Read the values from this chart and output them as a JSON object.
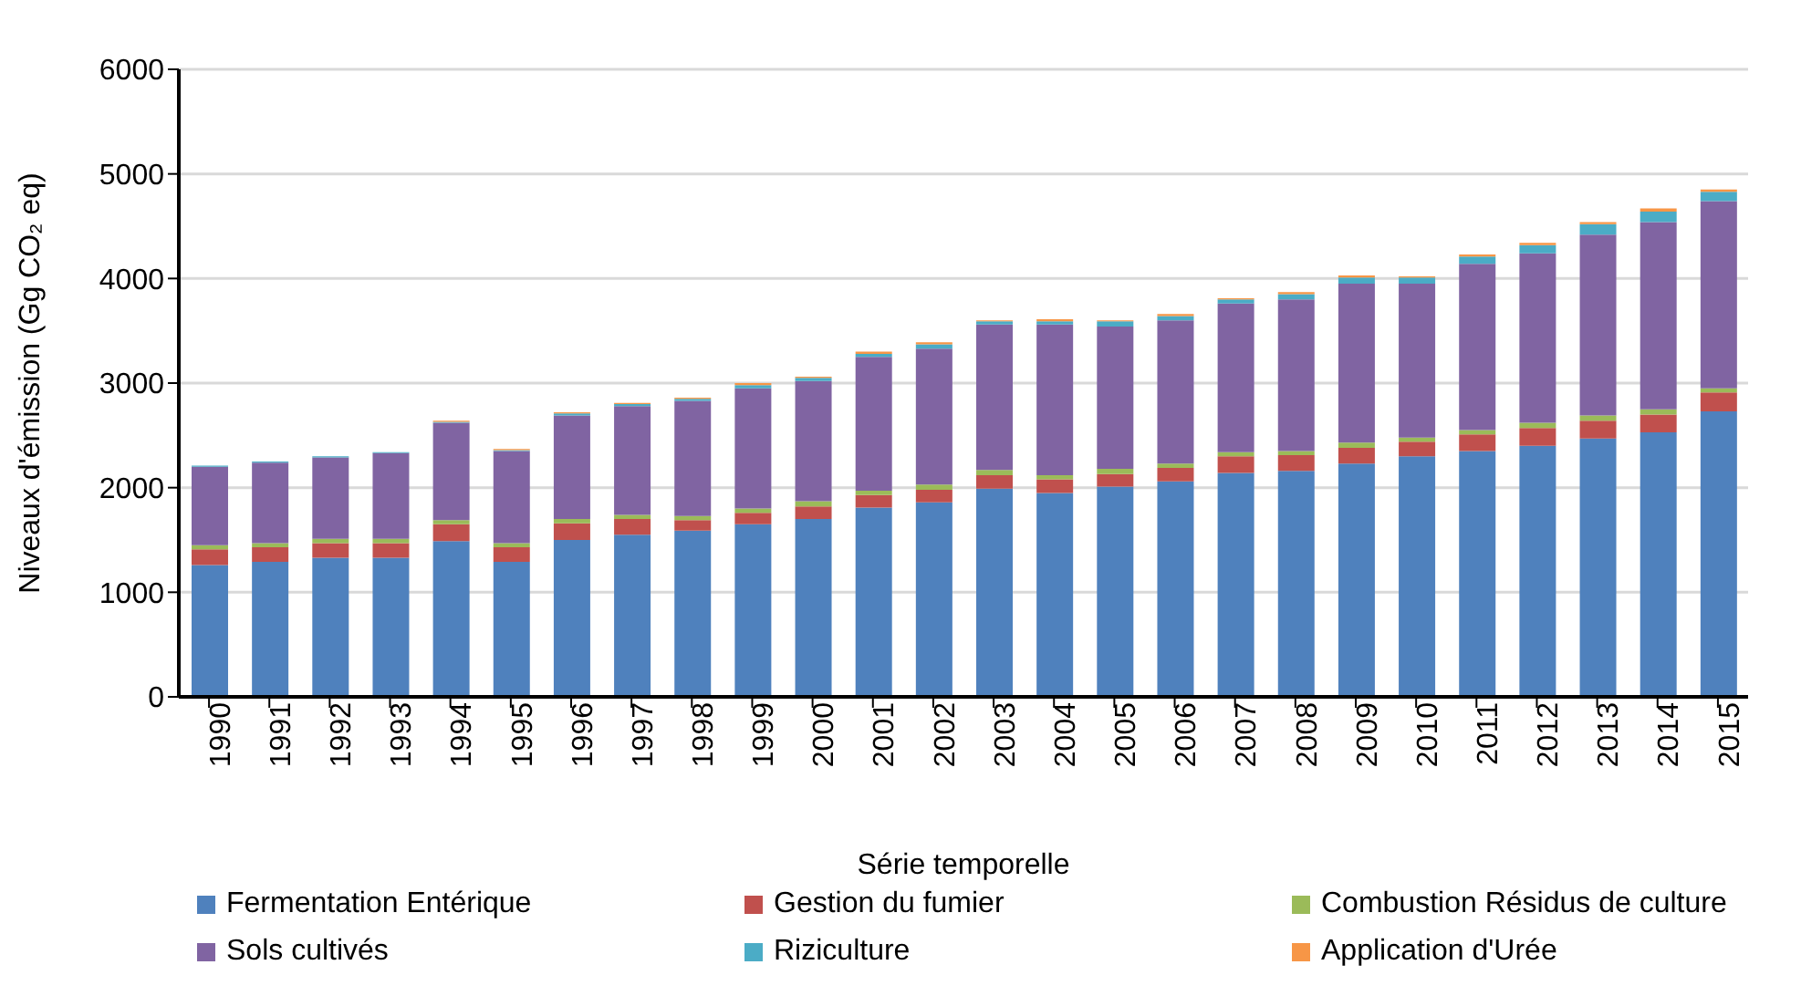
{
  "chart_data": {
    "type": "bar",
    "stacked": true,
    "xlabel": "Série temporelle",
    "ylabel": "Niveaux d'émission (Gg CO₂ eq)",
    "categories": [
      "1990",
      "1991",
      "1992",
      "1993",
      "1994",
      "1995",
      "1996",
      "1997",
      "1998",
      "1999",
      "2000",
      "2001",
      "2002",
      "2003",
      "2004",
      "2005",
      "2006",
      "2007",
      "2008",
      "2009",
      "2010",
      "2011",
      "2012",
      "2013",
      "2014",
      "2015"
    ],
    "series": [
      {
        "name": "Fermentation Entérique",
        "color": "#4f81bd",
        "values": [
          1260,
          1290,
          1330,
          1330,
          1490,
          1290,
          1500,
          1550,
          1590,
          1650,
          1700,
          1810,
          1860,
          1990,
          1950,
          2010,
          2060,
          2140,
          2160,
          2230,
          2300,
          2350,
          2400,
          2470,
          2530,
          2730
        ]
      },
      {
        "name": "Gestion du fumier",
        "color": "#c0504d",
        "values": [
          150,
          140,
          140,
          140,
          160,
          140,
          160,
          150,
          100,
          110,
          120,
          120,
          120,
          130,
          130,
          120,
          130,
          160,
          150,
          150,
          140,
          160,
          170,
          170,
          170,
          180
        ]
      },
      {
        "name": "Combustion Résidus de culture",
        "color": "#9bbb59",
        "values": [
          40,
          40,
          40,
          40,
          40,
          40,
          40,
          40,
          40,
          40,
          50,
          40,
          50,
          50,
          40,
          50,
          40,
          40,
          40,
          50,
          40,
          40,
          50,
          50,
          50,
          40
        ]
      },
      {
        "name": "Sols cultivés",
        "color": "#8064a2",
        "values": [
          750,
          770,
          780,
          820,
          930,
          880,
          990,
          1040,
          1100,
          1150,
          1150,
          1280,
          1300,
          1390,
          1440,
          1360,
          1370,
          1420,
          1450,
          1520,
          1470,
          1590,
          1620,
          1730,
          1790,
          1790
        ]
      },
      {
        "name": "Riziculture",
        "color": "#4bacc6",
        "values": [
          10,
          10,
          10,
          10,
          10,
          10,
          20,
          20,
          20,
          30,
          30,
          30,
          40,
          30,
          30,
          50,
          40,
          40,
          50,
          60,
          60,
          70,
          80,
          100,
          100,
          90
        ]
      },
      {
        "name": "Application d'Urée",
        "color": "#f79646",
        "values": [
          0,
          0,
          0,
          0,
          10,
          10,
          10,
          10,
          10,
          20,
          10,
          20,
          20,
          10,
          20,
          10,
          20,
          10,
          20,
          20,
          10,
          20,
          20,
          20,
          30,
          20
        ]
      }
    ],
    "ylim": [
      0,
      6000
    ],
    "yticks": [
      0,
      1000,
      2000,
      3000,
      4000,
      5000,
      6000
    ],
    "grid": "y",
    "legend": "bottom"
  }
}
